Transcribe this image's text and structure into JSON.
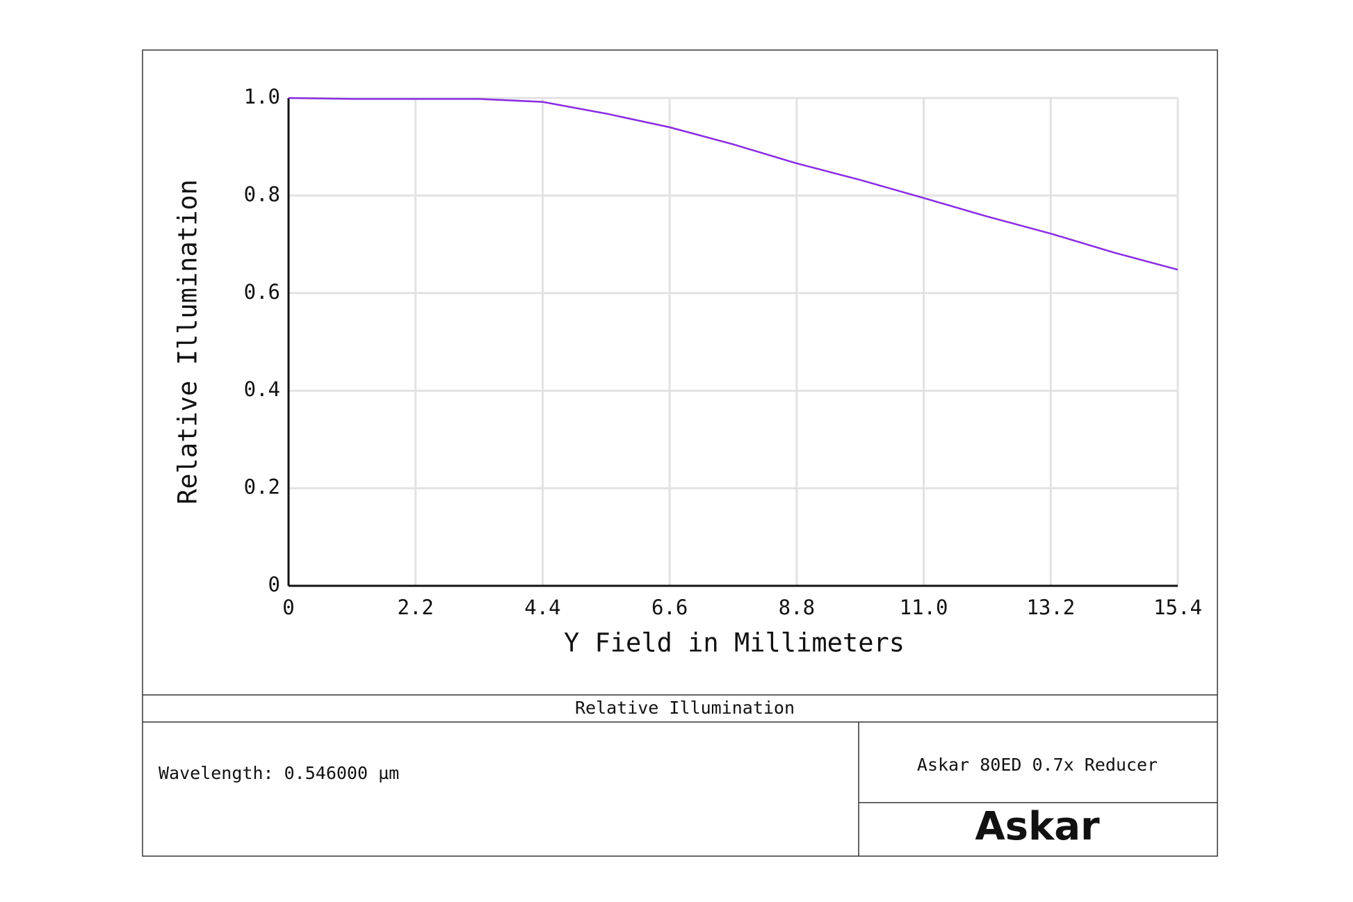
{
  "chart_data": {
    "type": "line",
    "x_label": "Y Field in Millimeters",
    "y_label": "Relative Illumination",
    "x": [
      0,
      1.1,
      2.2,
      3.3,
      4.4,
      5.5,
      6.6,
      7.7,
      8.8,
      9.9,
      11.0,
      12.1,
      13.2,
      14.3,
      15.4
    ],
    "series": [
      {
        "name": "Relative Illumination",
        "color": "#8a2be2",
        "values": [
          1.0,
          0.998,
          0.998,
          0.998,
          0.992,
          0.968,
          0.94,
          0.905,
          0.866,
          0.832,
          0.795,
          0.757,
          0.722,
          0.683,
          0.648
        ]
      }
    ],
    "xlim": [
      0,
      15.4
    ],
    "ylim": [
      0,
      1.0
    ],
    "xticks": [
      0,
      2.2,
      4.4,
      6.6,
      8.8,
      {
        "value": 11.0,
        "label": "11.0"
      },
      13.2,
      15.4
    ],
    "yticks": [
      0,
      0.2,
      0.4,
      0.6,
      0.8,
      {
        "value": 1.0,
        "label": "1.0"
      }
    ],
    "grid": true
  },
  "footer": {
    "title": "Relative Illumination",
    "wavelength": "Wavelength: 0.546000 µm",
    "lens": "Askar 80ED 0.7x Reducer",
    "logo": "Askar"
  }
}
